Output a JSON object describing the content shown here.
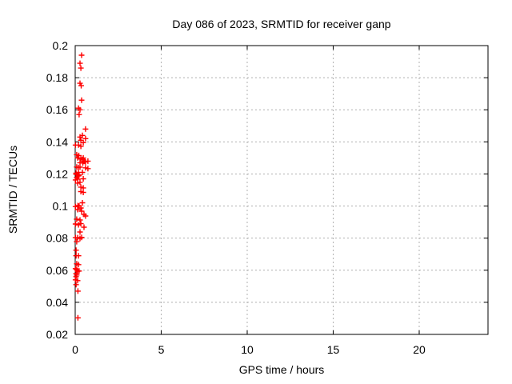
{
  "page": {
    "background": "#ffffff",
    "text_color": "#000000"
  },
  "chart_data": {
    "type": "scatter",
    "title": "Day 086 of 2023, SRMTID for receiver ganp",
    "xlabel": "GPS time / hours",
    "ylabel": "SRMTID / TECUs",
    "xlim": [
      0,
      24
    ],
    "ylim": [
      0.02,
      0.2
    ],
    "grid": true,
    "legend_position": "none",
    "x_ticks": [
      {
        "value": 0,
        "label": "0"
      },
      {
        "value": 5,
        "label": "5"
      },
      {
        "value": 10,
        "label": "10"
      },
      {
        "value": 15,
        "label": "15"
      },
      {
        "value": 20,
        "label": "20"
      }
    ],
    "y_ticks": [
      {
        "value": 0.02,
        "label": "0.02"
      },
      {
        "value": 0.04,
        "label": "0.04"
      },
      {
        "value": 0.06,
        "label": "0.06"
      },
      {
        "value": 0.08,
        "label": "0.08"
      },
      {
        "value": 0.1,
        "label": "0.1"
      },
      {
        "value": 0.12,
        "label": "0.12"
      },
      {
        "value": 0.14,
        "label": "0.14"
      },
      {
        "value": 0.16,
        "label": "0.16"
      },
      {
        "value": 0.18,
        "label": "0.18"
      },
      {
        "value": 0.2,
        "label": "0.2"
      }
    ],
    "marker": {
      "shape": "plus",
      "color": "#ff0000",
      "size": 7,
      "stroke_width": 1.4
    },
    "grid_color": "#b0b0b0",
    "axis_color": "#000000",
    "series": [
      {
        "name": "SRMTID",
        "points": [
          [
            0.37,
            0.194
          ],
          [
            0.28,
            0.189
          ],
          [
            0.33,
            0.186
          ],
          [
            0.28,
            0.1765
          ],
          [
            0.35,
            0.175
          ],
          [
            0.37,
            0.166
          ],
          [
            0.19,
            0.161
          ],
          [
            0.28,
            0.16
          ],
          [
            0.23,
            0.157
          ],
          [
            0.6,
            0.148
          ],
          [
            0.42,
            0.144
          ],
          [
            0.28,
            0.143
          ],
          [
            0.6,
            0.142
          ],
          [
            0.33,
            0.141
          ],
          [
            0.47,
            0.1395
          ],
          [
            0.02,
            0.138
          ],
          [
            0.19,
            0.138
          ],
          [
            0.33,
            0.1372
          ],
          [
            0.09,
            0.132
          ],
          [
            0.21,
            0.1315
          ],
          [
            0.14,
            0.13
          ],
          [
            0.47,
            0.13
          ],
          [
            0.33,
            0.1293
          ],
          [
            0.42,
            0.129
          ],
          [
            0.74,
            0.128
          ],
          [
            0.56,
            0.128
          ],
          [
            0.51,
            0.1278
          ],
          [
            0.6,
            0.1275
          ],
          [
            0.28,
            0.127
          ],
          [
            0.44,
            0.1268
          ],
          [
            0.09,
            0.1243
          ],
          [
            0.28,
            0.1243
          ],
          [
            0.19,
            0.124
          ],
          [
            0.6,
            0.1238
          ],
          [
            0.74,
            0.1233
          ],
          [
            0.42,
            0.121
          ],
          [
            0.19,
            0.121
          ],
          [
            0.05,
            0.1205
          ],
          [
            0.05,
            0.1198
          ],
          [
            0.23,
            0.1193
          ],
          [
            0.19,
            0.1188
          ],
          [
            0.09,
            0.1178
          ],
          [
            0.47,
            0.117
          ],
          [
            0.14,
            0.1168
          ],
          [
            0.02,
            0.1163
          ],
          [
            0.28,
            0.1148
          ],
          [
            0.14,
            0.1143
          ],
          [
            0.33,
            0.1118
          ],
          [
            0.47,
            0.1113
          ],
          [
            0.33,
            0.109
          ],
          [
            0.47,
            0.1085
          ],
          [
            0.42,
            0.102
          ],
          [
            0.16,
            0.1003
          ],
          [
            0.23,
            0.1
          ],
          [
            0.02,
            0.0997
          ],
          [
            0.33,
            0.0988
          ],
          [
            0.14,
            0.0978
          ],
          [
            0.37,
            0.0968
          ],
          [
            0.51,
            0.0948
          ],
          [
            0.6,
            0.0938
          ],
          [
            0.09,
            0.0918
          ],
          [
            0.28,
            0.0913
          ],
          [
            0.33,
            0.089
          ],
          [
            0.02,
            0.0888
          ],
          [
            0.19,
            0.0883
          ],
          [
            0.51,
            0.0868
          ],
          [
            0.28,
            0.0838
          ],
          [
            0.37,
            0.0805
          ],
          [
            0.02,
            0.0803
          ],
          [
            0.14,
            0.0803
          ],
          [
            0.28,
            0.0798
          ],
          [
            0.09,
            0.0778
          ],
          [
            0.05,
            0.0725
          ],
          [
            0.05,
            0.069
          ],
          [
            0.19,
            0.069
          ],
          [
            0.09,
            0.064
          ],
          [
            0.19,
            0.0635
          ],
          [
            0.02,
            0.061
          ],
          [
            0.09,
            0.0603
          ],
          [
            0.23,
            0.0595
          ],
          [
            0.14,
            0.0593
          ],
          [
            0.05,
            0.058
          ],
          [
            0.09,
            0.057
          ],
          [
            0.05,
            0.056
          ],
          [
            0.02,
            0.054
          ],
          [
            0.14,
            0.0535
          ],
          [
            0.05,
            0.051
          ],
          [
            0.16,
            0.047
          ],
          [
            0.16,
            0.0303
          ]
        ]
      }
    ]
  }
}
